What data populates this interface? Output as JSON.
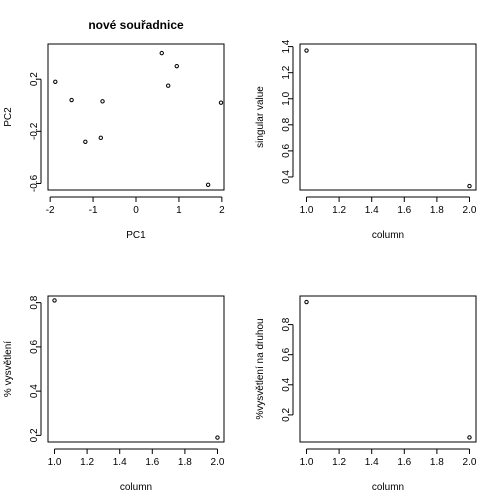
{
  "chart_data": [
    {
      "type": "scatter",
      "title": "nové souřadnice",
      "xlabel": "PC1",
      "ylabel": "PC2",
      "xlim": [
        -2.05,
        2.05
      ],
      "ylim": [
        -0.65,
        0.47
      ],
      "xticks": [
        -2,
        -1,
        0,
        1,
        2
      ],
      "xtick_labels": [
        "-2",
        "-1",
        "0",
        "1",
        "2"
      ],
      "yticks": [
        -0.6,
        -0.2,
        0.2
      ],
      "ytick_labels": [
        "-0.6",
        "-0.2",
        "0.2"
      ],
      "grid": false,
      "points": [
        {
          "x": 0.6,
          "y": 0.4
        },
        {
          "x": 0.95,
          "y": 0.3
        },
        {
          "x": -1.88,
          "y": 0.18
        },
        {
          "x": 0.75,
          "y": 0.15
        },
        {
          "x": -1.5,
          "y": 0.04
        },
        {
          "x": -0.78,
          "y": 0.03
        },
        {
          "x": 1.98,
          "y": 0.02
        },
        {
          "x": -0.82,
          "y": -0.25
        },
        {
          "x": -1.18,
          "y": -0.28
        },
        {
          "x": 1.68,
          "y": -0.61
        }
      ]
    },
    {
      "type": "scatter",
      "title": "",
      "xlabel": "column",
      "ylabel": "singular value",
      "xlim": [
        0.96,
        2.04
      ],
      "ylim": [
        0.3,
        1.42
      ],
      "xticks": [
        1.0,
        1.2,
        1.4,
        1.6,
        1.8,
        2.0
      ],
      "xtick_labels": [
        "1.0",
        "1.2",
        "1.4",
        "1.6",
        "1.8",
        "2.0"
      ],
      "yticks": [
        0.4,
        0.6,
        0.8,
        1.0,
        1.2,
        1.4
      ],
      "ytick_labels": [
        "0.4",
        "0.6",
        "0.8",
        "1.0",
        "1.2",
        "1.4"
      ],
      "grid": false,
      "points": [
        {
          "x": 1,
          "y": 1.37
        },
        {
          "x": 2,
          "y": 0.33
        }
      ]
    },
    {
      "type": "scatter",
      "title": "",
      "xlabel": "column",
      "ylabel": "% vysvětlení",
      "xlim": [
        0.96,
        2.04
      ],
      "ylim": [
        0.17,
        0.83
      ],
      "xticks": [
        1.0,
        1.2,
        1.4,
        1.6,
        1.8,
        2.0
      ],
      "xtick_labels": [
        "1.0",
        "1.2",
        "1.4",
        "1.6",
        "1.8",
        "2.0"
      ],
      "yticks": [
        0.2,
        0.4,
        0.6,
        0.8
      ],
      "ytick_labels": [
        "0.2",
        "0.4",
        "0.6",
        "0.8"
      ],
      "grid": false,
      "points": [
        {
          "x": 1,
          "y": 0.81
        },
        {
          "x": 2,
          "y": 0.19
        }
      ]
    },
    {
      "type": "scatter",
      "title": "",
      "xlabel": "column",
      "ylabel": "%vysvětlení na druhou",
      "xlim": [
        0.96,
        2.04
      ],
      "ylim": [
        0.02,
        0.99
      ],
      "xticks": [
        1.0,
        1.2,
        1.4,
        1.6,
        1.8,
        2.0
      ],
      "xtick_labels": [
        "1.0",
        "1.2",
        "1.4",
        "1.6",
        "1.8",
        "2.0"
      ],
      "yticks": [
        0.2,
        0.4,
        0.6,
        0.8
      ],
      "ytick_labels": [
        "0.2",
        "0.4",
        "0.6",
        "0.8"
      ],
      "grid": false,
      "points": [
        {
          "x": 1,
          "y": 0.95
        },
        {
          "x": 2,
          "y": 0.05
        }
      ]
    }
  ]
}
